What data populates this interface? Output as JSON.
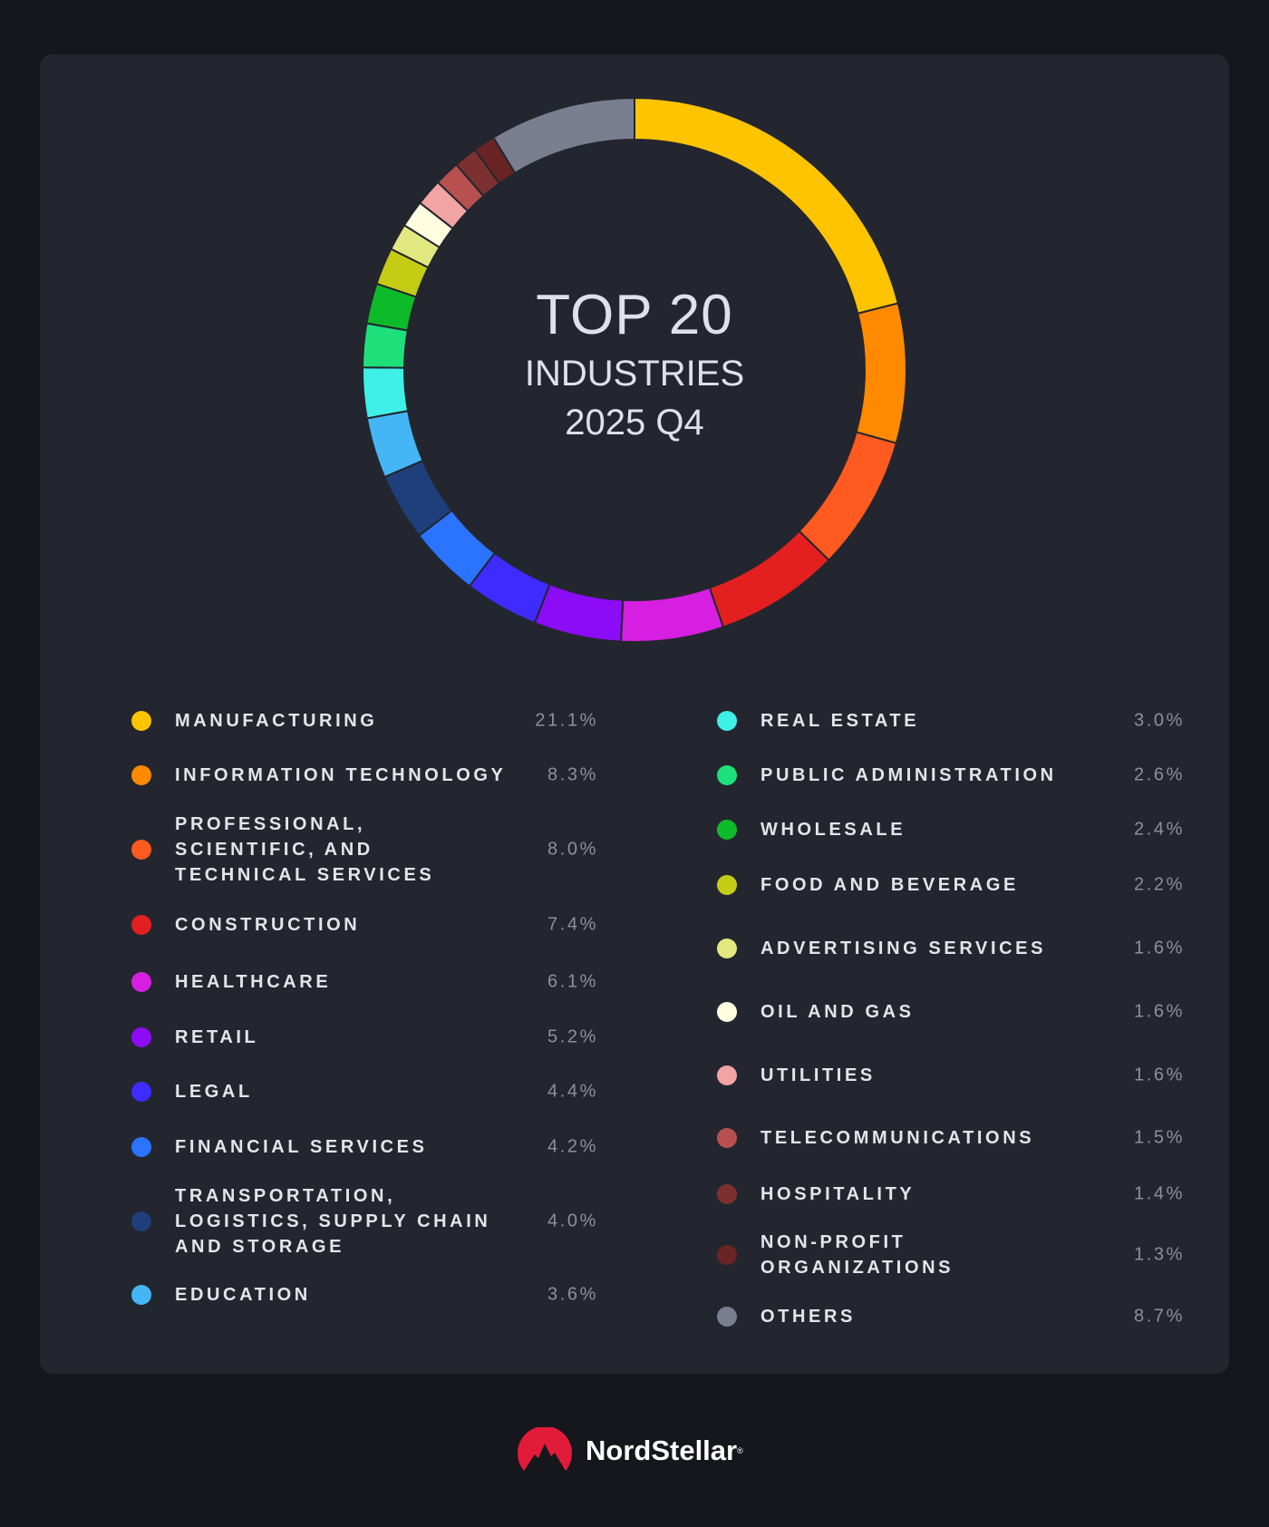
{
  "chart_data": {
    "type": "pie",
    "variant": "donut",
    "title": [
      "TOP 20",
      "INDUSTRIES",
      "2025 Q4"
    ],
    "legend_placement": "bottom",
    "series": [
      {
        "name": "MANUFACTURING",
        "value": 21.1,
        "label": "21.1%",
        "color": "#ffc400"
      },
      {
        "name": "INFORMATION TECHNOLOGY",
        "value": 8.3,
        "label": "8.3%",
        "color": "#ff8a00"
      },
      {
        "name": "PROFESSIONAL,\nSCIENTIFIC, AND\nTECHNICAL SERVICES",
        "value": 8.0,
        "label": "8.0%",
        "color": "#ff5a1f"
      },
      {
        "name": "CONSTRUCTION",
        "value": 7.4,
        "label": "7.4%",
        "color": "#e3201f"
      },
      {
        "name": "HEALTHCARE",
        "value": 6.1,
        "label": "6.1%",
        "color": "#d61fe0"
      },
      {
        "name": "RETAIL",
        "value": 5.2,
        "label": "5.2%",
        "color": "#8c0cf5"
      },
      {
        "name": "LEGAL",
        "value": 4.4,
        "label": "4.4%",
        "color": "#3d2bff"
      },
      {
        "name": "FINANCIAL SERVICES",
        "value": 4.2,
        "label": "4.2%",
        "color": "#2a74ff"
      },
      {
        "name": "TRANSPORTATION,\nLOGISTICS, SUPPLY CHAIN\nAND STORAGE",
        "value": 4.0,
        "label": "4.0%",
        "color": "#1f3f7a"
      },
      {
        "name": "EDUCATION",
        "value": 3.6,
        "label": "3.6%",
        "color": "#45b6f5"
      },
      {
        "name": "REAL ESTATE",
        "value": 3.0,
        "label": "3.0%",
        "color": "#3ff0e8"
      },
      {
        "name": "PUBLIC ADMINISTRATION",
        "value": 2.6,
        "label": "2.6%",
        "color": "#1ee07a"
      },
      {
        "name": "WHOLESALE",
        "value": 2.4,
        "label": "2.4%",
        "color": "#0dbb2a"
      },
      {
        "name": "FOOD AND BEVERAGE",
        "value": 2.2,
        "label": "2.2%",
        "color": "#c5cc14"
      },
      {
        "name": "ADVERTISING SERVICES",
        "value": 1.6,
        "label": "1.6%",
        "color": "#e2e880"
      },
      {
        "name": "OIL AND GAS",
        "value": 1.6,
        "label": "1.6%",
        "color": "#fffde0"
      },
      {
        "name": "UTILITIES",
        "value": 1.6,
        "label": "1.6%",
        "color": "#f2a3a3"
      },
      {
        "name": "TELECOMMUNICATIONS",
        "value": 1.5,
        "label": "1.5%",
        "color": "#b85050"
      },
      {
        "name": "HOSPITALITY",
        "value": 1.4,
        "label": "1.4%",
        "color": "#7d3030"
      },
      {
        "name": "NON-PROFIT\nORGANIZATIONS",
        "value": 1.3,
        "label": "1.3%",
        "color": "#6b2424"
      },
      {
        "name": "OTHERS",
        "value": 8.7,
        "label": "8.7%",
        "color": "#7a7f8f"
      }
    ]
  },
  "brand": {
    "name": "NordStellar",
    "mark": "®",
    "color": "#e31b3b"
  }
}
